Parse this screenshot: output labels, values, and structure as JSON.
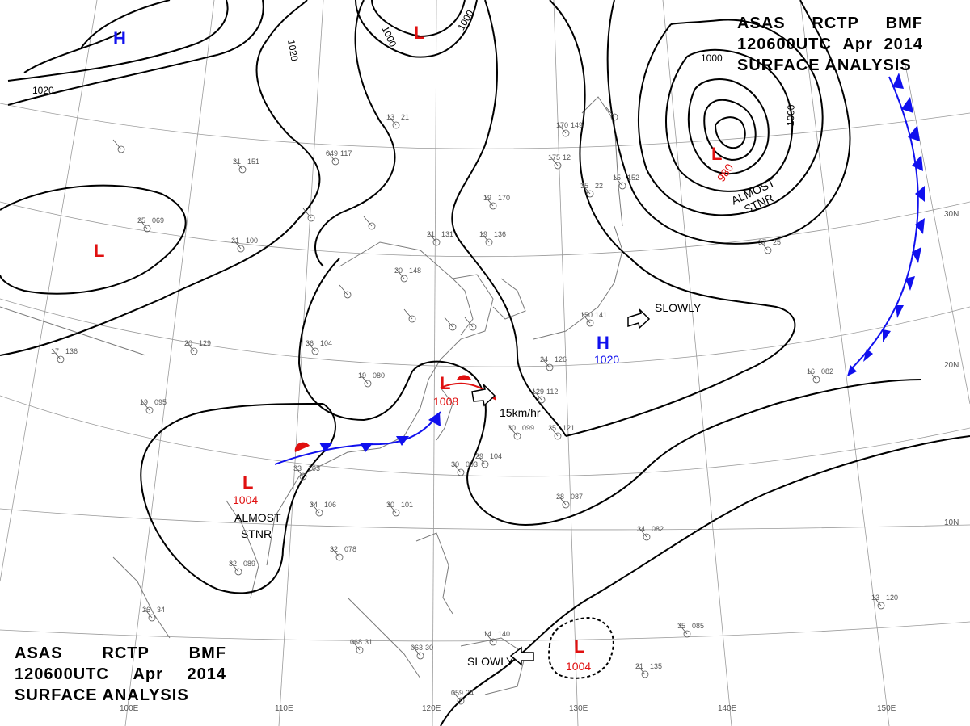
{
  "title": {
    "line1": [
      "ASAS",
      "RCTP",
      "BMF"
    ],
    "line2": [
      "120600UTC",
      "Apr",
      "2014"
    ],
    "line3": "SURFACE ANALYSIS"
  },
  "lat_labels": [
    "30N",
    "20N",
    "10N"
  ],
  "lon_labels": [
    "100E",
    "110E",
    "120E",
    "130E",
    "140E",
    "150E"
  ],
  "isobar_labels": [
    "1020",
    "1020",
    "1000",
    "1000",
    "1000",
    "1000"
  ],
  "pressure_centers": [
    {
      "type": "H",
      "value": ""
    },
    {
      "type": "L",
      "value": ""
    },
    {
      "type": "L",
      "value": ""
    },
    {
      "type": "L",
      "value": "980"
    },
    {
      "type": "L",
      "value": "1008"
    },
    {
      "type": "L",
      "value": "1004"
    },
    {
      "type": "H",
      "value": "1020"
    },
    {
      "type": "L",
      "value": "1004"
    }
  ],
  "annotations": [
    "ALMOST",
    "STNR",
    "SLOWLY",
    "15km/hr",
    "ALMOST",
    "STNR",
    "SLOWLY"
  ],
  "station_numbers": [
    "25",
    "069",
    "21",
    "100",
    "20",
    "148",
    "21",
    "131",
    "19",
    "136",
    "19",
    "170",
    "175",
    "12",
    "170",
    "149",
    "35",
    "22",
    "15",
    "152",
    "150",
    "141",
    "24",
    "126",
    "129",
    "112",
    "25",
    "121",
    "30",
    "099",
    "29",
    "104",
    "30",
    "093",
    "28",
    "087",
    "34",
    "082",
    "30",
    "101",
    "34",
    "106",
    "33",
    "103",
    "32",
    "089",
    "32",
    "078",
    "26",
    "34",
    "068",
    "31",
    "063",
    "30",
    "059",
    "24",
    "14",
    "140",
    "35",
    "085",
    "21",
    "135",
    "13",
    "120",
    "16",
    "082",
    "19",
    "080",
    "19",
    "095",
    "36",
    "104",
    "37",
    "25",
    "13",
    "21",
    "049",
    "117",
    "21",
    "151",
    "17",
    "136",
    "20",
    "129"
  ],
  "colors": {
    "front_blue": "#1010ee",
    "front_red": "#e01010",
    "isobar": "#000000",
    "grid": "#888888",
    "station": "#666666"
  }
}
